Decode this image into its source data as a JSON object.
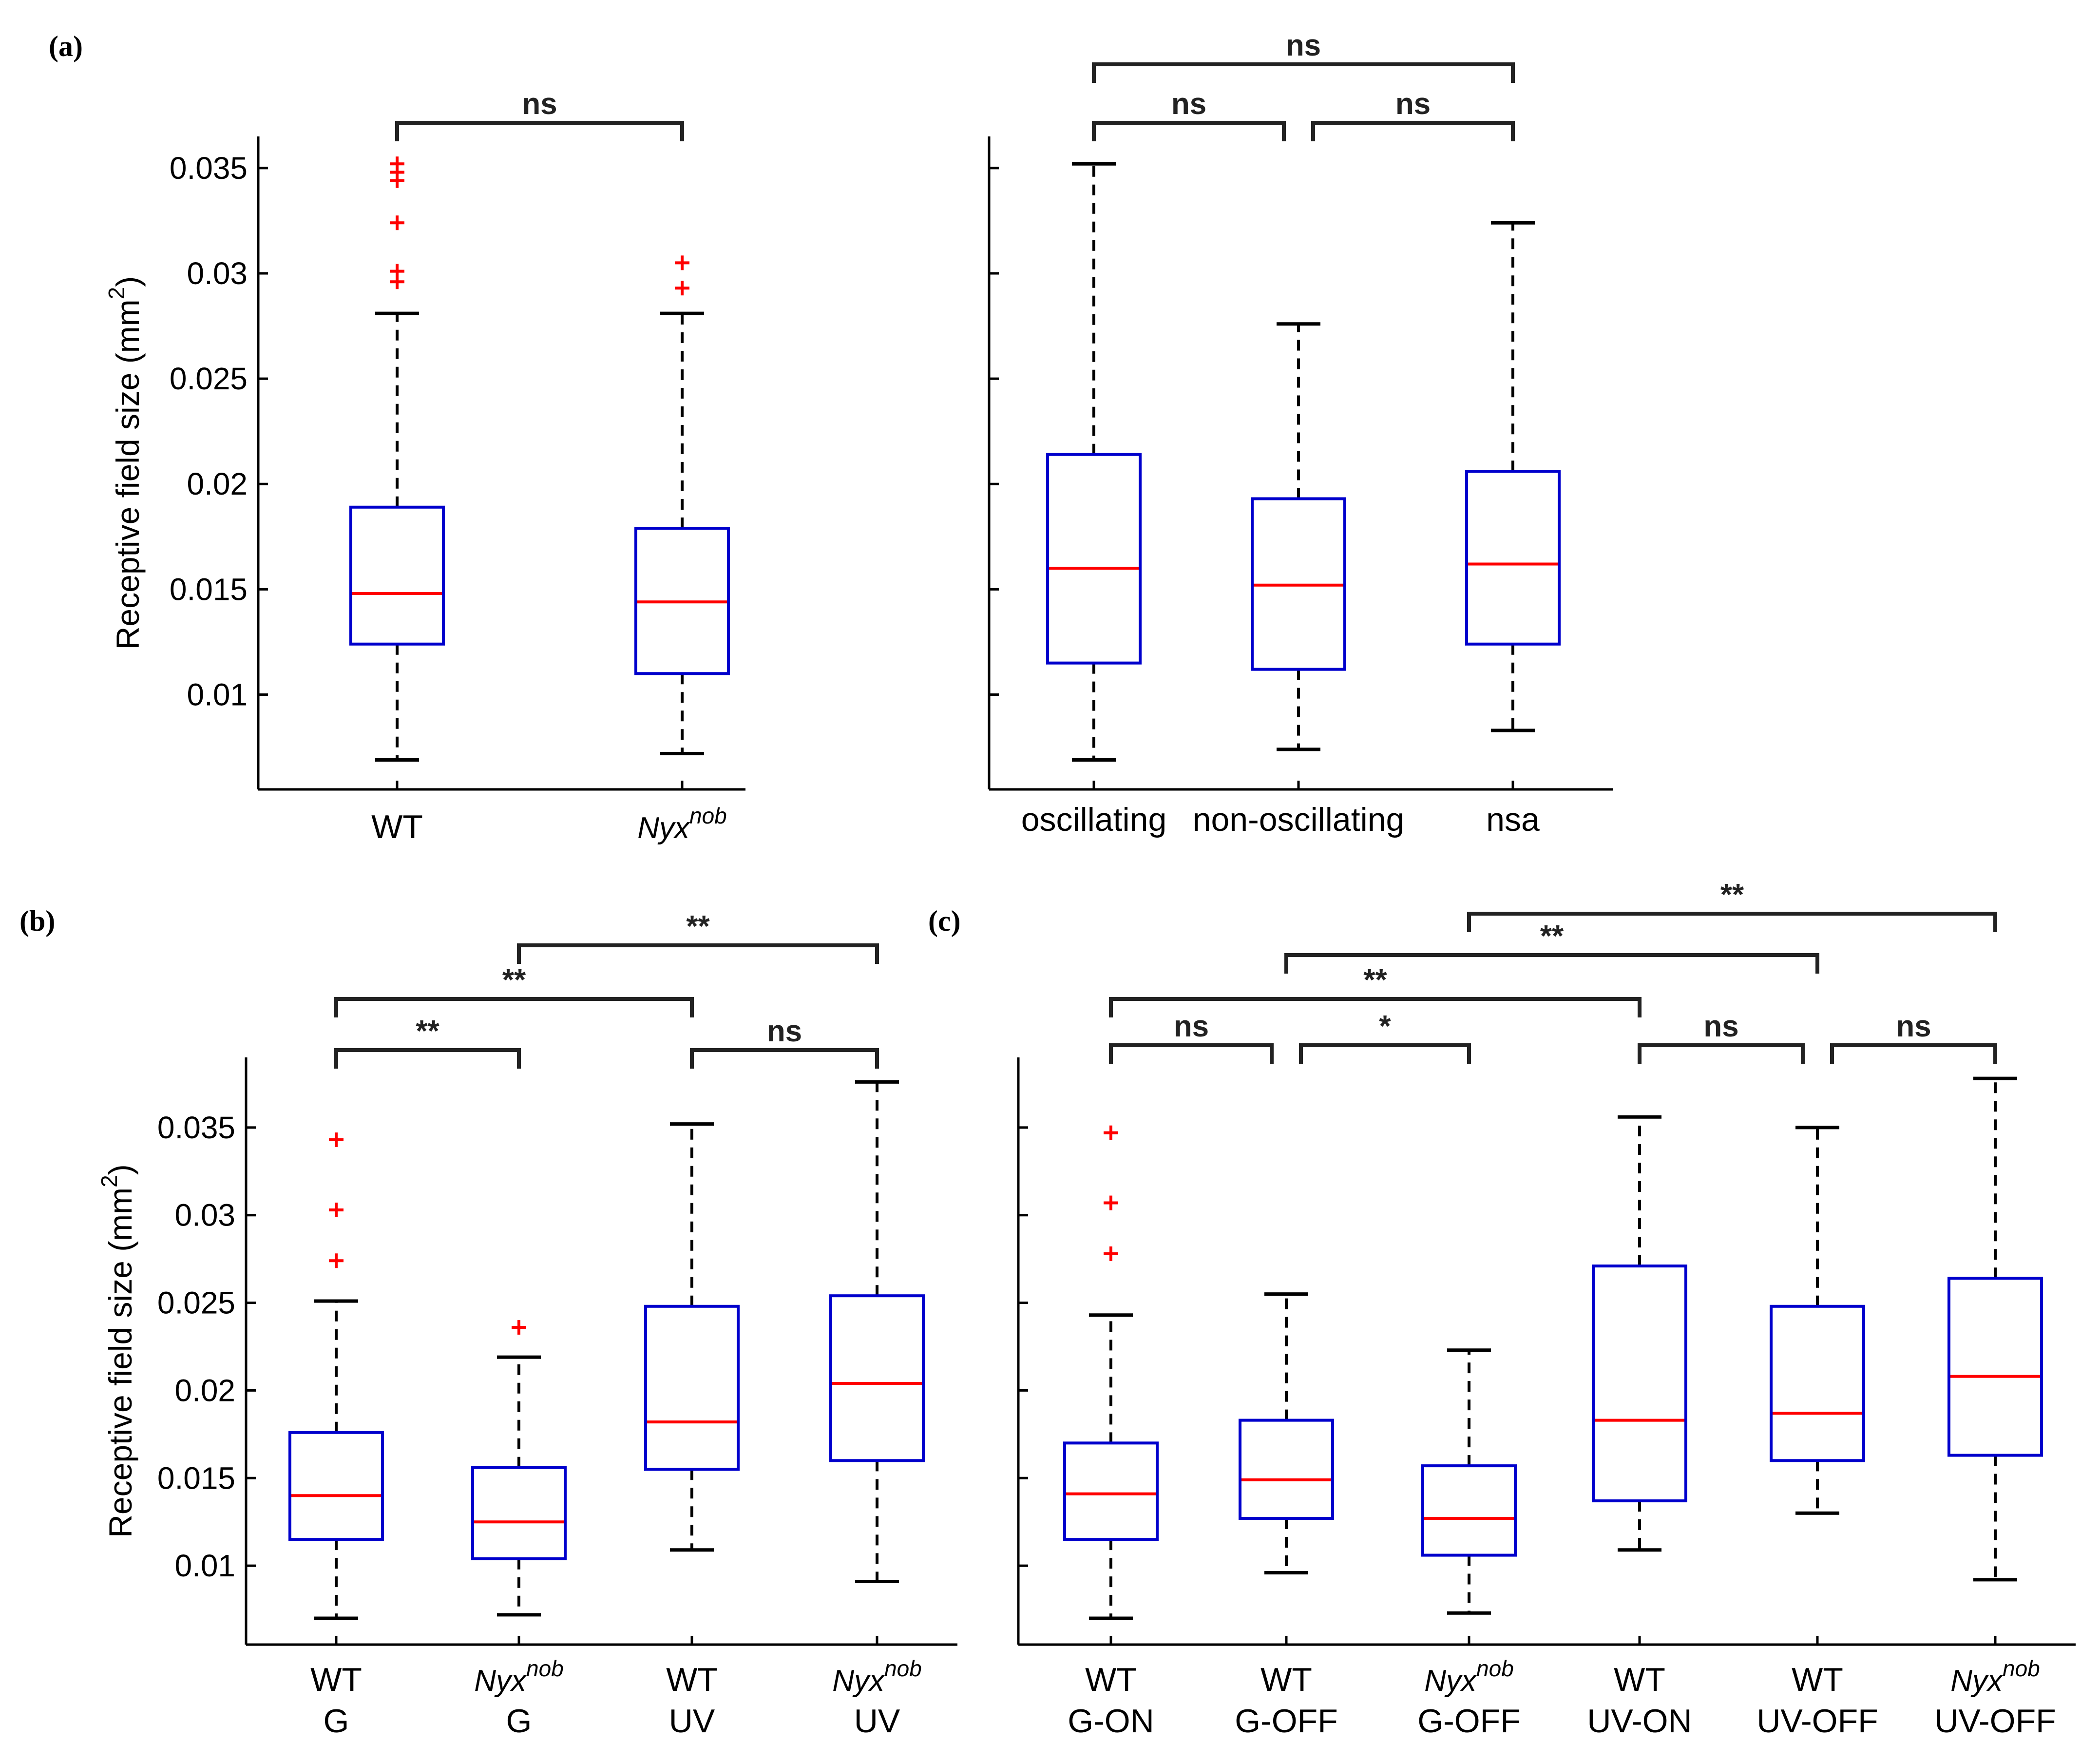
{
  "panel_labels": [
    "(a)",
    "(b)",
    "(c)"
  ],
  "colors": {
    "box": "#0000cc",
    "median": "#ff0000",
    "outlier": "#ff0000",
    "whisker": "#000000",
    "bracket": "#222222"
  },
  "chart_data": [
    {
      "id": "a-left",
      "type": "box",
      "panel": "(a)",
      "ylabel": "Receptive field size (mm",
      "ylabel_sup": "2",
      "ylabel_close": ")",
      "ylim": [
        0.0055,
        0.0365
      ],
      "yticks": [
        0.01,
        0.015,
        0.02,
        0.025,
        0.03,
        0.035
      ],
      "ytick_labels": [
        "0.01",
        "0.015",
        "0.02",
        "0.025",
        "0.03",
        "0.035"
      ],
      "categories": [
        {
          "lines": [
            {
              "text": "WT"
            }
          ]
        },
        {
          "lines": [
            {
              "text": "Nyx",
              "sup": "nob",
              "italic": true
            }
          ]
        }
      ],
      "boxes": [
        {
          "whisker_low": 0.0069,
          "q1": 0.0124,
          "median": 0.0148,
          "q3": 0.0189,
          "whisker_high": 0.0281,
          "outliers": [
            0.0296,
            0.0301,
            0.0324,
            0.0344,
            0.0348,
            0.0352
          ]
        },
        {
          "whisker_low": 0.0072,
          "q1": 0.011,
          "median": 0.0144,
          "q3": 0.0179,
          "whisker_high": 0.0281,
          "outliers": [
            0.0293,
            0.0305
          ]
        }
      ],
      "brackets": [
        {
          "from": 0,
          "to": 1,
          "label": "ns",
          "level": 0
        }
      ]
    },
    {
      "id": "a-right",
      "type": "box",
      "panel": "(a)",
      "ylim": [
        0.0055,
        0.0365
      ],
      "yticks": [
        0.01,
        0.015,
        0.02,
        0.025,
        0.03,
        0.035
      ],
      "categories": [
        {
          "lines": [
            {
              "text": "oscillating"
            }
          ]
        },
        {
          "lines": [
            {
              "text": "non-oscillating"
            }
          ]
        },
        {
          "lines": [
            {
              "text": "nsa"
            }
          ]
        }
      ],
      "boxes": [
        {
          "whisker_low": 0.0069,
          "q1": 0.0115,
          "median": 0.016,
          "q3": 0.0214,
          "whisker_high": 0.0352,
          "outliers": []
        },
        {
          "whisker_low": 0.0074,
          "q1": 0.0112,
          "median": 0.0152,
          "q3": 0.0193,
          "whisker_high": 0.0276,
          "outliers": []
        },
        {
          "whisker_low": 0.0083,
          "q1": 0.0124,
          "median": 0.0162,
          "q3": 0.0206,
          "whisker_high": 0.0324,
          "outliers": []
        }
      ],
      "brackets": [
        {
          "from": 0,
          "to": 1,
          "label": "ns",
          "level": 0
        },
        {
          "from": 1,
          "to": 2,
          "label": "ns",
          "level": 0
        },
        {
          "from": 0,
          "to": 2,
          "label": "ns",
          "level": 1
        }
      ]
    },
    {
      "id": "b",
      "type": "box",
      "panel": "(b)",
      "ylabel": "Receptive field size (mm",
      "ylabel_sup": "2",
      "ylabel_close": ")",
      "ylim": [
        0.0055,
        0.039
      ],
      "yticks": [
        0.01,
        0.015,
        0.02,
        0.025,
        0.03,
        0.035
      ],
      "ytick_labels": [
        "0.01",
        "0.015",
        "0.02",
        "0.025",
        "0.03",
        "0.035"
      ],
      "categories": [
        {
          "lines": [
            {
              "text": "WT"
            },
            {
              "text": "G"
            }
          ]
        },
        {
          "lines": [
            {
              "text": "Nyx",
              "sup": "nob",
              "italic": true
            },
            {
              "text": "G"
            }
          ]
        },
        {
          "lines": [
            {
              "text": "WT"
            },
            {
              "text": "UV"
            }
          ]
        },
        {
          "lines": [
            {
              "text": "Nyx",
              "sup": "nob",
              "italic": true
            },
            {
              "text": "UV"
            }
          ]
        }
      ],
      "boxes": [
        {
          "whisker_low": 0.007,
          "q1": 0.0115,
          "median": 0.014,
          "q3": 0.0176,
          "whisker_high": 0.0251,
          "outliers": [
            0.0274,
            0.0303,
            0.0343
          ]
        },
        {
          "whisker_low": 0.0072,
          "q1": 0.0104,
          "median": 0.0125,
          "q3": 0.0156,
          "whisker_high": 0.0219,
          "outliers": [
            0.0236
          ]
        },
        {
          "whisker_low": 0.0109,
          "q1": 0.0155,
          "median": 0.0182,
          "q3": 0.0248,
          "whisker_high": 0.0352,
          "outliers": []
        },
        {
          "whisker_low": 0.0091,
          "q1": 0.016,
          "median": 0.0204,
          "q3": 0.0254,
          "whisker_high": 0.0376,
          "outliers": []
        }
      ],
      "brackets": [
        {
          "from": 0,
          "to": 1,
          "label": "**",
          "level": 0
        },
        {
          "from": 2,
          "to": 3,
          "label": "ns",
          "level": 0
        },
        {
          "from": 0,
          "to": 2,
          "label": "**",
          "level": 1
        },
        {
          "from": 1,
          "to": 3,
          "label": "**",
          "level": 2
        }
      ]
    },
    {
      "id": "c",
      "type": "box",
      "panel": "(c)",
      "ylim": [
        0.0055,
        0.039
      ],
      "yticks": [
        0.01,
        0.015,
        0.02,
        0.025,
        0.03,
        0.035
      ],
      "categories": [
        {
          "lines": [
            {
              "text": "WT"
            },
            {
              "text": "G-ON"
            }
          ]
        },
        {
          "lines": [
            {
              "text": "WT"
            },
            {
              "text": "G-OFF"
            }
          ]
        },
        {
          "lines": [
            {
              "text": "Nyx",
              "sup": "nob",
              "italic": true
            },
            {
              "text": "G-OFF"
            }
          ]
        },
        {
          "lines": [
            {
              "text": "WT"
            },
            {
              "text": "UV-ON"
            }
          ]
        },
        {
          "lines": [
            {
              "text": "WT"
            },
            {
              "text": "UV-OFF"
            }
          ]
        },
        {
          "lines": [
            {
              "text": "Nyx",
              "sup": "nob",
              "italic": true
            },
            {
              "text": "UV-OFF"
            }
          ]
        }
      ],
      "boxes": [
        {
          "whisker_low": 0.007,
          "q1": 0.0115,
          "median": 0.0141,
          "q3": 0.017,
          "whisker_high": 0.0243,
          "outliers": [
            0.0278,
            0.0307,
            0.0347
          ]
        },
        {
          "whisker_low": 0.0096,
          "q1": 0.0127,
          "median": 0.0149,
          "q3": 0.0183,
          "whisker_high": 0.0255,
          "outliers": []
        },
        {
          "whisker_low": 0.0073,
          "q1": 0.0106,
          "median": 0.0127,
          "q3": 0.0157,
          "whisker_high": 0.0223,
          "outliers": []
        },
        {
          "whisker_low": 0.0109,
          "q1": 0.0137,
          "median": 0.0183,
          "q3": 0.0271,
          "whisker_high": 0.0356,
          "outliers": []
        },
        {
          "whisker_low": 0.013,
          "q1": 0.016,
          "median": 0.0187,
          "q3": 0.0248,
          "whisker_high": 0.035,
          "outliers": []
        },
        {
          "whisker_low": 0.0092,
          "q1": 0.0163,
          "median": 0.0208,
          "q3": 0.0264,
          "whisker_high": 0.0378,
          "outliers": []
        }
      ],
      "brackets": [
        {
          "from": 0,
          "to": 1,
          "label": "ns",
          "level": 0
        },
        {
          "from": 1,
          "to": 2,
          "label": "*",
          "level": 0
        },
        {
          "from": 3,
          "to": 4,
          "label": "ns",
          "level": 0
        },
        {
          "from": 4,
          "to": 5,
          "label": "ns",
          "level": 0
        },
        {
          "from": 0,
          "to": 3,
          "label": "**",
          "level": 1
        },
        {
          "from": 1,
          "to": 4,
          "label": "**",
          "level": 2
        },
        {
          "from": 2,
          "to": 5,
          "label": "**",
          "level": 3
        }
      ]
    }
  ]
}
